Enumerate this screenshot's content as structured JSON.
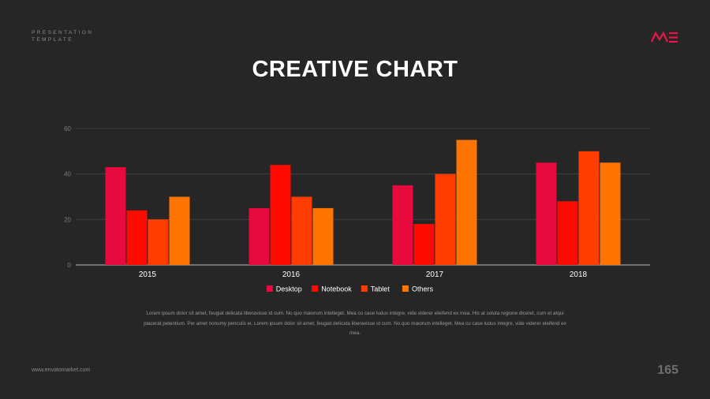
{
  "header": {
    "brand_line1": "PRESENTATION",
    "brand_line2": "TEMPLATE",
    "logo_text": "ME"
  },
  "slide": {
    "title": "CREATIVE CHART",
    "paragraph": "Lorem ipsum dolor sit amet, feugiat delicata liberavisse id cum. No quo maiorum intelleget. Mea cu case ludus integre, vide viderer eleifend ex mea. His at soluta regione diceret, cum et atqui placerat petentium. Per amet nonumy periculis ei. Lorem ipsum dolor sit amet, feugiat delicata liberavisse id cum. No quo maiorum intelleget. Mea cu case ludus integre, vide viderer eleifend ex mea."
  },
  "footer": {
    "url": "www.envatomarket.com",
    "page_number": "165"
  },
  "colors": {
    "background": "#262626",
    "accent": "#e8174a"
  },
  "chart_data": {
    "type": "bar",
    "categories": [
      "2015",
      "2016",
      "2017",
      "2018"
    ],
    "series": [
      {
        "name": "Desktop",
        "color": "#e8093f",
        "values": [
          43,
          25,
          35,
          45
        ]
      },
      {
        "name": "Notebook",
        "color": "#ff0a00",
        "values": [
          24,
          44,
          18,
          28
        ]
      },
      {
        "name": "Tablet",
        "color": "#ff3d00",
        "values": [
          20,
          30,
          40,
          50
        ]
      },
      {
        "name": "Others",
        "color": "#ff7300",
        "values": [
          30,
          25,
          55,
          45
        ]
      }
    ],
    "ylim": [
      0,
      60
    ],
    "yticks": [
      0,
      20,
      40,
      60
    ],
    "grid": true,
    "legend": "bottom-center"
  }
}
